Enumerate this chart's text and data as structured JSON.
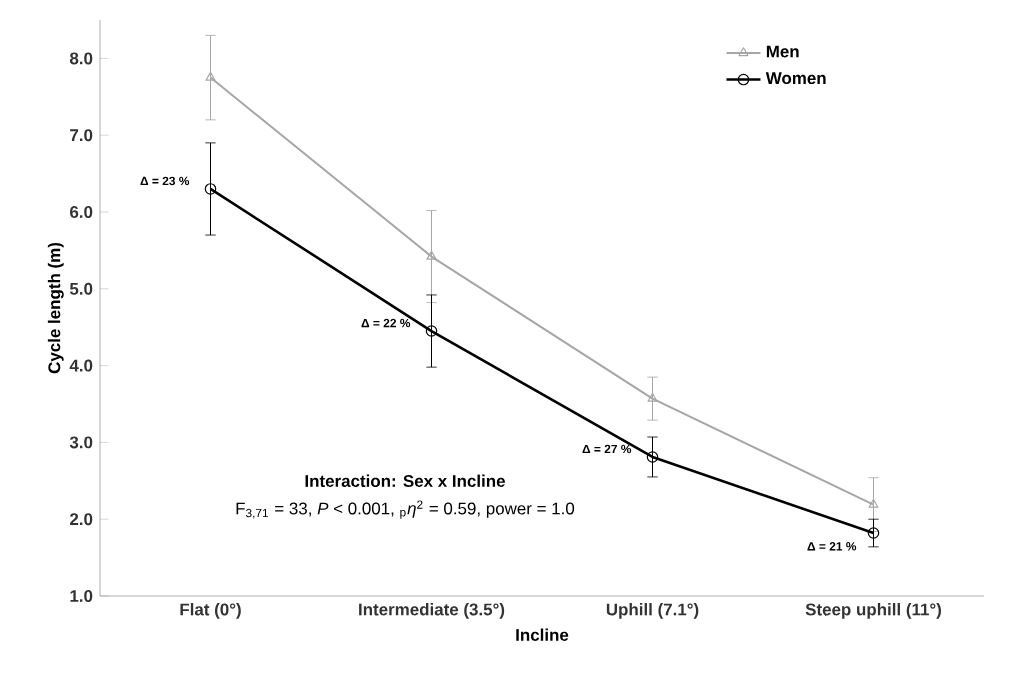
{
  "chart_data": {
    "type": "line",
    "xlabel": "Incline",
    "ylabel": "Cycle length (m)",
    "categories": [
      "Flat (0°)",
      "Intermediate (3.5°)",
      "Uphill (7.1°)",
      "Steep uphill (11°)"
    ],
    "series": [
      {
        "name": "Men",
        "color": "#a6a6a6",
        "marker": "triangle",
        "values": [
          7.75,
          5.42,
          3.57,
          2.19
        ],
        "errors": [
          0.55,
          0.6,
          0.28,
          0.35
        ]
      },
      {
        "name": "Women",
        "color": "#000000",
        "marker": "circle",
        "values": [
          6.3,
          4.45,
          2.81,
          1.82
        ],
        "errors": [
          0.6,
          0.47,
          0.26,
          0.18
        ]
      }
    ],
    "ylim": [
      1,
      8.5
    ],
    "yticks": [
      {
        "value": 1,
        "label": "1.0"
      },
      {
        "value": 2,
        "label": "2.0"
      },
      {
        "value": 3,
        "label": "3.0"
      },
      {
        "value": 4,
        "label": "4.0"
      },
      {
        "value": 5,
        "label": "5.0"
      },
      {
        "value": 6,
        "label": "6.0"
      },
      {
        "value": 7,
        "label": "7.0"
      },
      {
        "value": 8,
        "label": "8.0"
      }
    ],
    "grid": false,
    "legend": "top right",
    "line_style": "solid",
    "annotations": [
      {
        "text": "Δ = 23 %",
        "x": "Flat (0°)",
        "y": 6.3
      },
      {
        "text": "Δ = 22 %",
        "x": "Intermediate (3.5°)",
        "y": 4.45
      },
      {
        "text": "Δ = 27 %",
        "x": "Uphill (7.1°)",
        "y": 2.81
      },
      {
        "text": "Δ = 21 %",
        "x": "Steep uphill (11°)",
        "y": 1.82
      },
      "**Interaction: Sex x Incline**",
      "F$_{3,71}$ = 33, *P* < 0.001, $_{p}$*η*$^{2}$ = 0.59, power = 1.0"
    ]
  }
}
